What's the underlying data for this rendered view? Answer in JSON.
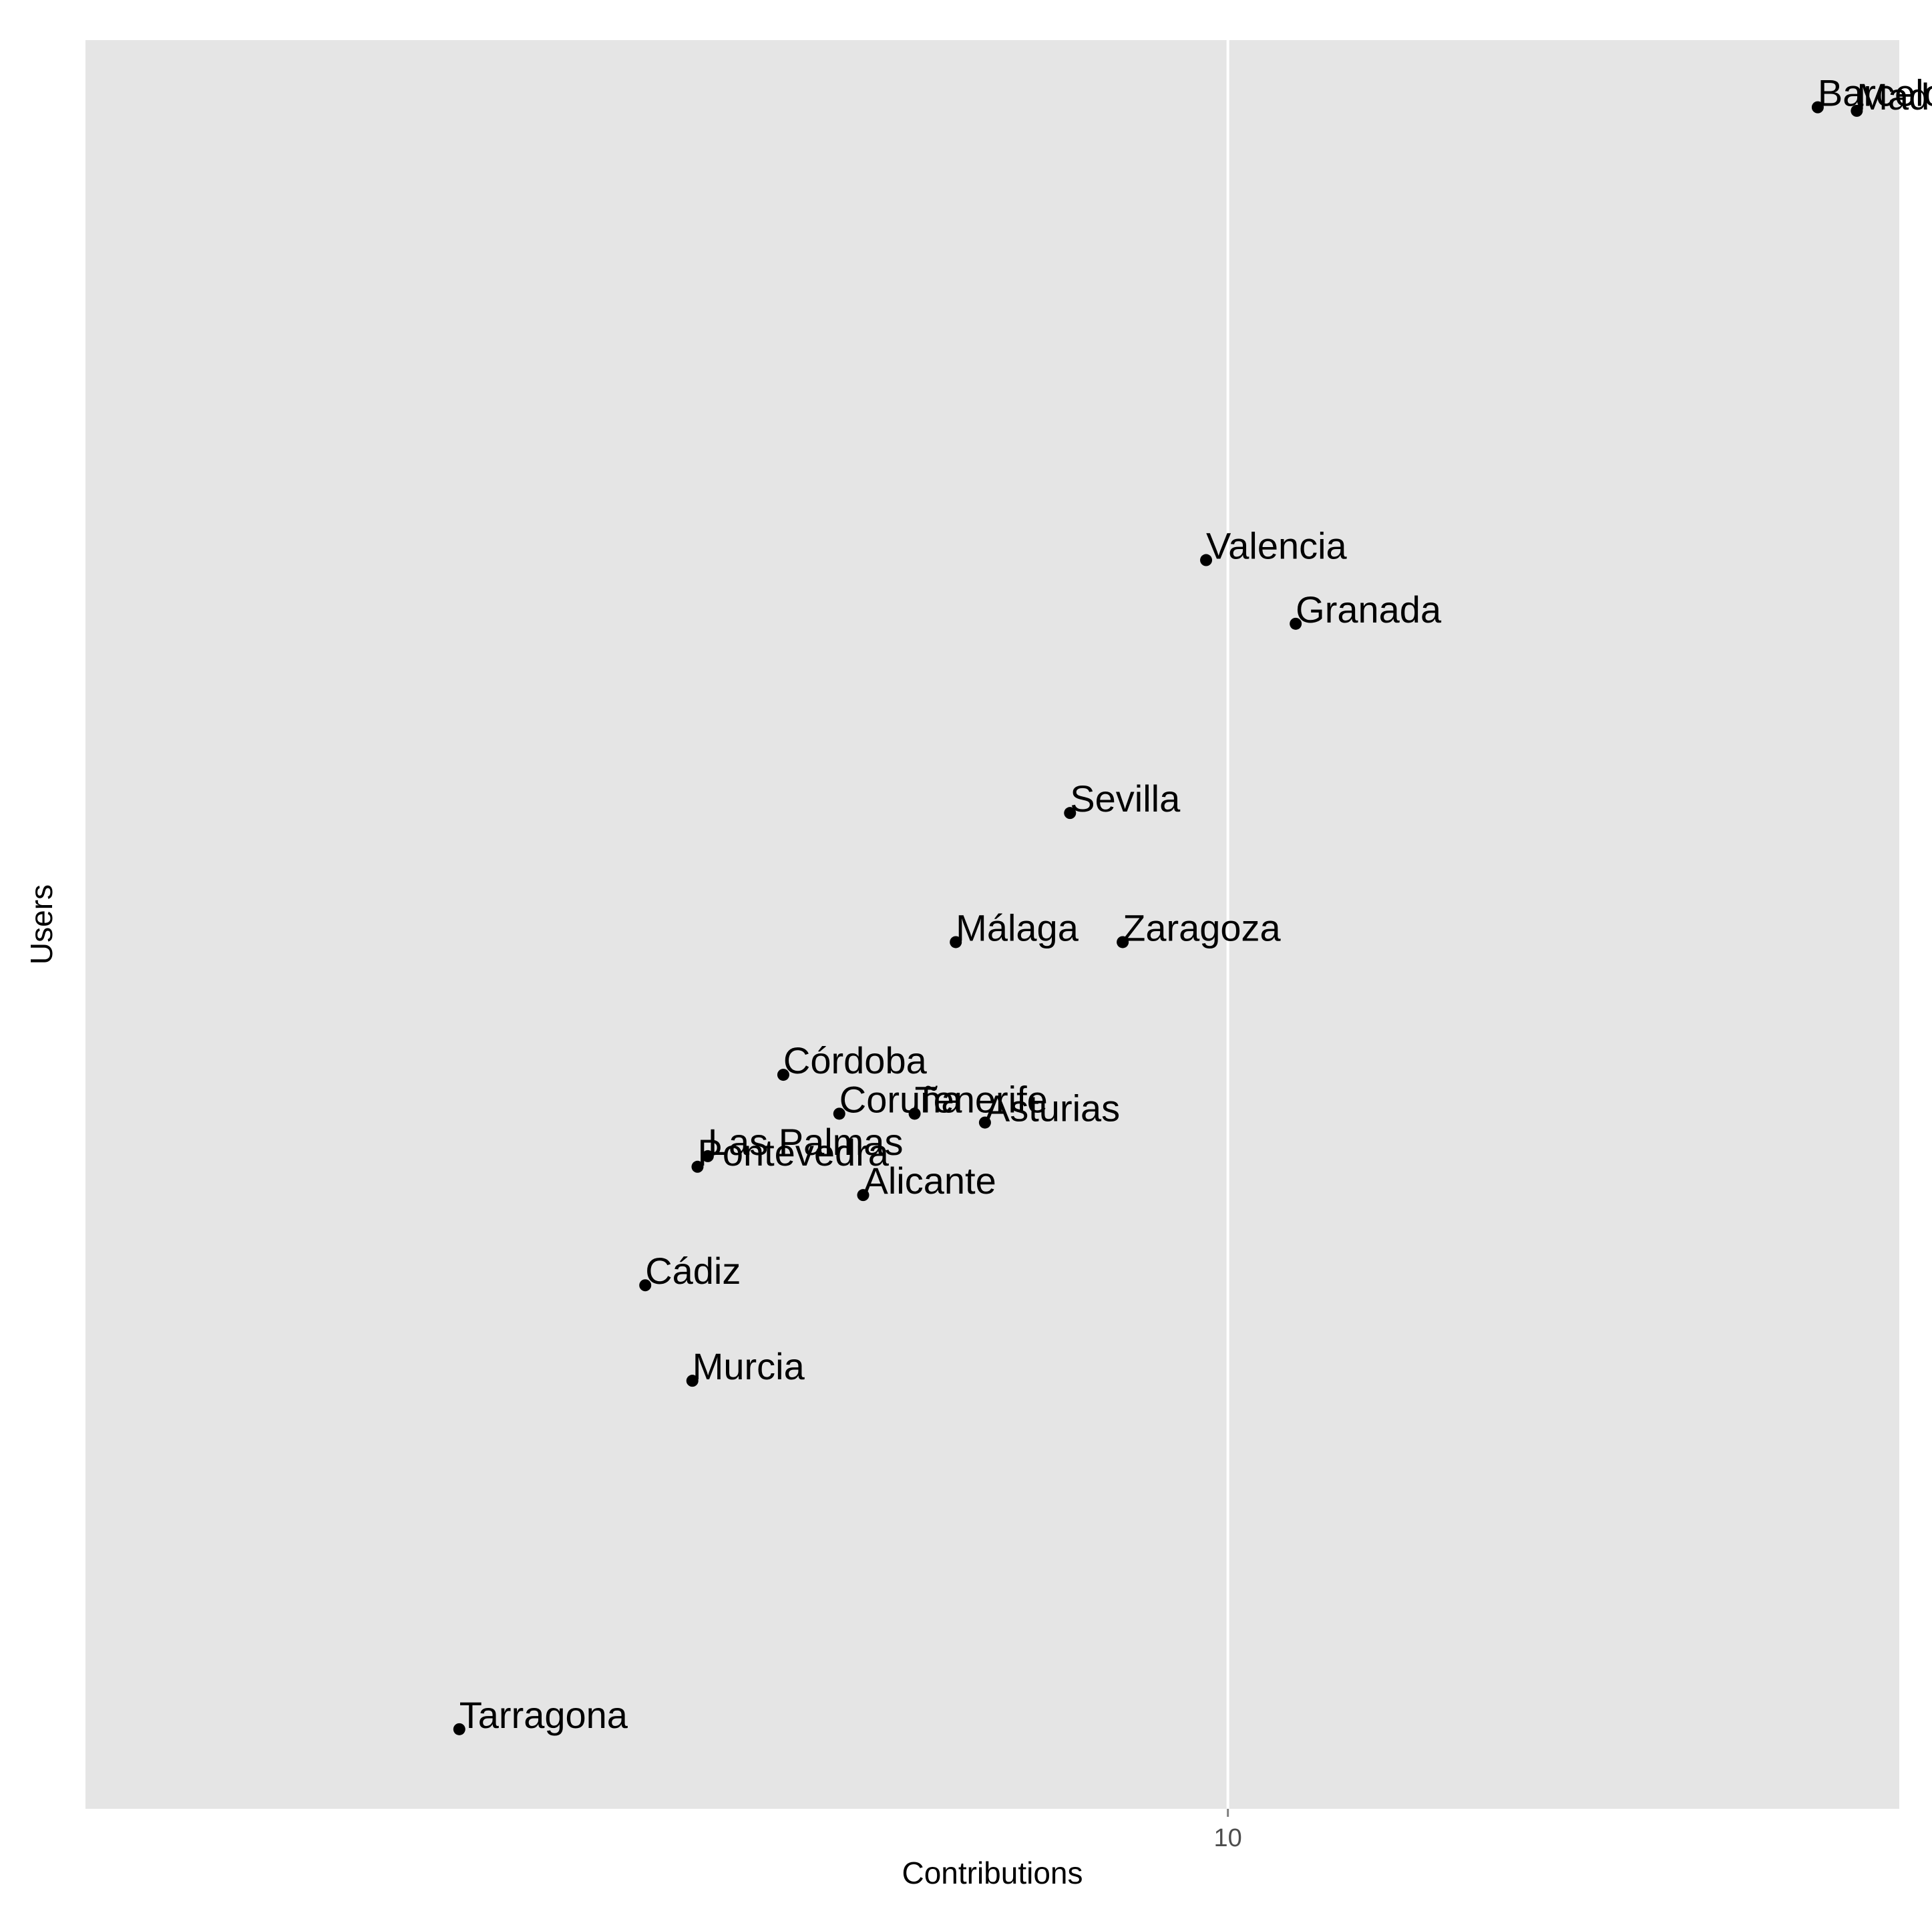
{
  "chart_data": {
    "type": "scatter",
    "title": "",
    "xlabel": "Contributions",
    "ylabel": "Users",
    "x_scale": "log10",
    "xlim": [
      5.6,
      14.06
    ],
    "ylim": [
      0,
      1
    ],
    "x_ticks": [
      {
        "value": 10,
        "label": "10"
      }
    ],
    "y_ticks": [],
    "grid": true,
    "legend": "none",
    "colors": {
      "panel": "#e5e5e5",
      "grid": "#ffffff",
      "point": "#000000",
      "tick_label": "#4d4d4d"
    },
    "points": [
      {
        "label": "Barcelona",
        "x": 13.49,
        "y": 0.962
      },
      {
        "label": "Madrid",
        "x": 13.76,
        "y": 0.96
      },
      {
        "label": "Valencia",
        "x": 9.89,
        "y": 0.706
      },
      {
        "label": "Granada",
        "x": 10.35,
        "y": 0.67
      },
      {
        "label": "Sevilla",
        "x": 9.23,
        "y": 0.563
      },
      {
        "label": "Zaragoza",
        "x": 9.48,
        "y": 0.49
      },
      {
        "label": "Málaga",
        "x": 8.71,
        "y": 0.49
      },
      {
        "label": "Córdoba",
        "x": 7.98,
        "y": 0.415
      },
      {
        "label": "Coruña",
        "x": 8.21,
        "y": 0.393
      },
      {
        "label": "Tenerife",
        "x": 8.53,
        "y": 0.393
      },
      {
        "label": "Asturias",
        "x": 8.84,
        "y": 0.388
      },
      {
        "label": "Las Palmas",
        "x": 7.68,
        "y": 0.369
      },
      {
        "label": "Pontevedra",
        "x": 7.64,
        "y": 0.363
      },
      {
        "label": "Alicante",
        "x": 8.31,
        "y": 0.347
      },
      {
        "label": "Cádiz",
        "x": 7.44,
        "y": 0.296
      },
      {
        "label": "Murcia",
        "x": 7.62,
        "y": 0.242
      },
      {
        "label": "Tarragona",
        "x": 6.77,
        "y": 0.045
      }
    ]
  }
}
